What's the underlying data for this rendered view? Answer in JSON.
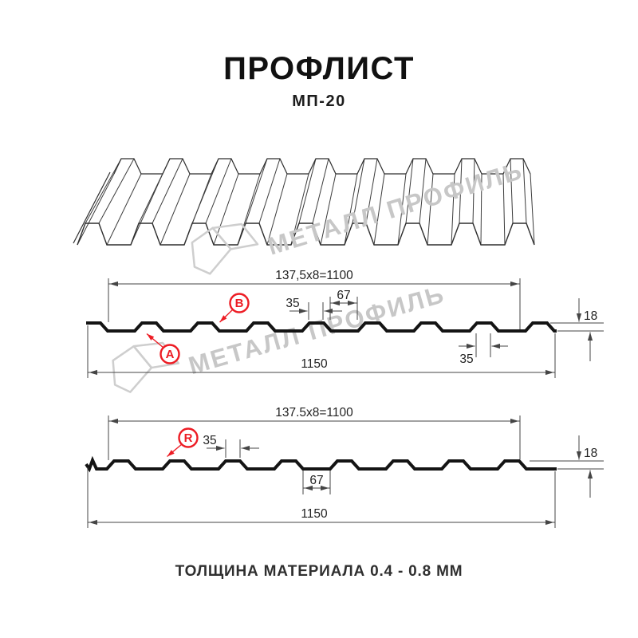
{
  "header": {
    "title": "ПРОФЛИСТ",
    "subtitle": "МП-20"
  },
  "drawing": {
    "watermark_text": "МЕТАЛЛ ПРОФИЛЬ",
    "section_top": {
      "coverage_width": "137,5x8=1100",
      "overall_width": "1150",
      "rib_top_width": "35",
      "valley_width": "67",
      "profile_height": "18",
      "rib_bottom_width": "35",
      "marker_a": "A",
      "marker_b": "B"
    },
    "section_bottom": {
      "coverage_width": "137.5x8=1100",
      "overall_width": "1150",
      "rib_top_width": "35",
      "valley_width": "67",
      "profile_height": "18",
      "marker_r": "R"
    }
  },
  "footer": {
    "note": "ТОЛЩИНА МАТЕРИАЛА 0.4 - 0.8 ММ"
  },
  "colors": {
    "accent": "#ed1c24",
    "line": "#141414",
    "dimension": "#454545",
    "watermark": "#c8c8c8"
  }
}
